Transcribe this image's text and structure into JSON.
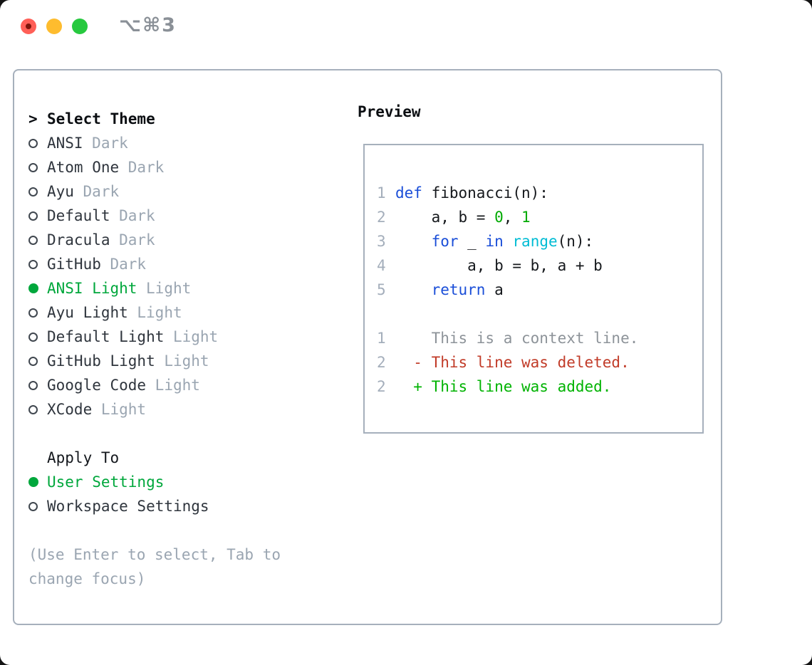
{
  "window": {
    "shortcut": "⌥⌘3"
  },
  "colors": {
    "accent": "#00a73c",
    "muted": "#9aa5b1",
    "border": "#a6b0bc",
    "heading": "#0b0e12",
    "item": "#2f353d",
    "traffic_red": "#ff5f57",
    "traffic_yellow": "#febc2e",
    "traffic_green": "#27c93f"
  },
  "theme_panel": {
    "title_prefix": ">",
    "title": "Select Theme",
    "themes": [
      {
        "name": "ANSI",
        "variant": "Dark",
        "selected": false
      },
      {
        "name": "Atom One",
        "variant": "Dark",
        "selected": false
      },
      {
        "name": "Ayu",
        "variant": "Dark",
        "selected": false
      },
      {
        "name": "Default",
        "variant": "Dark",
        "selected": false
      },
      {
        "name": "Dracula",
        "variant": "Dark",
        "selected": false
      },
      {
        "name": "GitHub",
        "variant": "Dark",
        "selected": false
      },
      {
        "name": "ANSI Light",
        "variant": "Light",
        "selected": true
      },
      {
        "name": "Ayu Light",
        "variant": "Light",
        "selected": false
      },
      {
        "name": "Default Light",
        "variant": "Light",
        "selected": false
      },
      {
        "name": "GitHub Light",
        "variant": "Light",
        "selected": false
      },
      {
        "name": "Google Code",
        "variant": "Light",
        "selected": false
      },
      {
        "name": "XCode",
        "variant": "Light",
        "selected": false
      }
    ],
    "apply_to": {
      "title": "Apply To",
      "options": [
        {
          "label": "User Settings",
          "selected": true
        },
        {
          "label": "Workspace Settings",
          "selected": false
        }
      ]
    },
    "hint_lines": [
      "(Use Enter to select, Tab to",
      "change focus)"
    ]
  },
  "preview": {
    "title": "Preview",
    "colors": {
      "plain": "#15181c",
      "keyword": "#1a4ed8",
      "builtin": "#00bcd4",
      "number": "#00aa02",
      "context": "#8d9399",
      "deleted": "#c13b28",
      "added": "#00b302",
      "gutter": "#a4aebb"
    },
    "code_lines": [
      {
        "num": "1",
        "segments": [
          {
            "text": "def",
            "color": "keyword"
          },
          {
            "text": " fibonacci(n):",
            "color": "plain"
          }
        ]
      },
      {
        "num": "2",
        "segments": [
          {
            "text": "    a, b = ",
            "color": "plain"
          },
          {
            "text": "0",
            "color": "number"
          },
          {
            "text": ", ",
            "color": "plain"
          },
          {
            "text": "1",
            "color": "number"
          }
        ]
      },
      {
        "num": "3",
        "segments": [
          {
            "text": "    ",
            "color": "plain"
          },
          {
            "text": "for",
            "color": "keyword"
          },
          {
            "text": " _ ",
            "color": "plain"
          },
          {
            "text": "in",
            "color": "keyword"
          },
          {
            "text": " ",
            "color": "plain"
          },
          {
            "text": "range",
            "color": "builtin"
          },
          {
            "text": "(n):",
            "color": "plain"
          }
        ]
      },
      {
        "num": "4",
        "segments": [
          {
            "text": "        a, b = b, a + b",
            "color": "plain"
          }
        ]
      },
      {
        "num": "5",
        "segments": [
          {
            "text": "    ",
            "color": "plain"
          },
          {
            "text": "return",
            "color": "keyword"
          },
          {
            "text": " a",
            "color": "plain"
          }
        ]
      },
      {
        "num": "",
        "segments": []
      },
      {
        "num": "1",
        "segments": [
          {
            "text": "    This is a context line.",
            "color": "context"
          }
        ]
      },
      {
        "num": "2",
        "segments": [
          {
            "text": "  - This line was deleted.",
            "color": "deleted"
          }
        ]
      },
      {
        "num": "2",
        "segments": [
          {
            "text": "  + This line was added.",
            "color": "added"
          }
        ]
      }
    ]
  }
}
